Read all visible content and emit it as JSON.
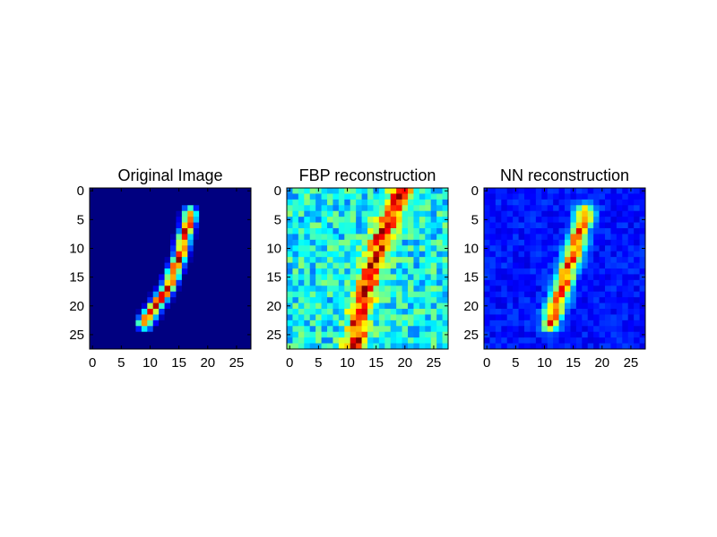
{
  "chart_data": [
    {
      "type": "heatmap",
      "title": "Original Image",
      "colormap": "jet",
      "xlim": [
        0,
        27
      ],
      "ylim": [
        27,
        0
      ],
      "xticks": [
        0,
        5,
        10,
        15,
        20,
        25
      ],
      "yticks": [
        0,
        5,
        10,
        15,
        20,
        25
      ],
      "xtick_labels": [
        "0",
        "5",
        "10",
        "15",
        "20",
        "25"
      ],
      "ytick_labels": [
        "0",
        "5",
        "10",
        "15",
        "20",
        "25"
      ],
      "background_level": 0.0,
      "stroke": [
        [
          17,
          4
        ],
        [
          15,
          12
        ],
        [
          13,
          17
        ],
        [
          9,
          23
        ]
      ],
      "stroke_width": 0.8,
      "stroke_peak": 1.0,
      "noise": 0.0
    },
    {
      "type": "heatmap",
      "title": "FBP reconstruction",
      "colormap": "jet",
      "xlim": [
        0,
        27
      ],
      "ylim": [
        27,
        0
      ],
      "xticks": [
        0,
        5,
        10,
        15,
        20,
        25
      ],
      "yticks": [
        0,
        5,
        10,
        15,
        20,
        25
      ],
      "xtick_labels": [
        "0",
        "5",
        "10",
        "15",
        "20",
        "25"
      ],
      "ytick_labels": [
        "0",
        "5",
        "10",
        "15",
        "20",
        "25"
      ],
      "background_level": 0.38,
      "stroke": [
        [
          19.5,
          0
        ],
        [
          16,
          8
        ],
        [
          13,
          18
        ],
        [
          11,
          27.5
        ]
      ],
      "stroke_width": 1.3,
      "stroke_peak": 0.95,
      "noise": 0.14
    },
    {
      "type": "heatmap",
      "title": "NN reconstruction",
      "colormap": "jet",
      "xlim": [
        0,
        27
      ],
      "ylim": [
        27,
        0
      ],
      "xticks": [
        0,
        5,
        10,
        15,
        20,
        25
      ],
      "yticks": [
        0,
        5,
        10,
        15,
        20,
        25
      ],
      "xtick_labels": [
        "0",
        "5",
        "10",
        "15",
        "20",
        "25"
      ],
      "ytick_labels": [
        "0",
        "5",
        "10",
        "15",
        "20",
        "25"
      ],
      "background_level": 0.14,
      "stroke": [
        [
          17,
          4
        ],
        [
          15,
          11
        ],
        [
          13,
          17
        ],
        [
          11,
          23
        ]
      ],
      "stroke_width": 1.1,
      "stroke_peak": 0.92,
      "noise": 0.05
    }
  ]
}
